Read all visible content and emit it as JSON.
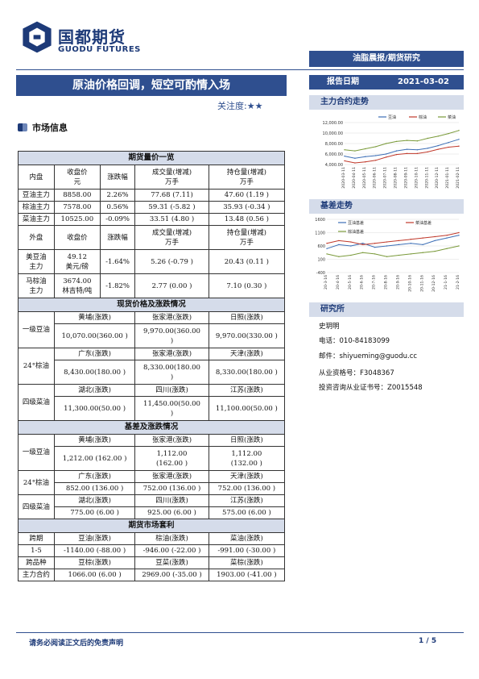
{
  "header": {
    "logo_cn": "国都期货",
    "logo_en": "GUODU FUTURES",
    "banner": "油脂晨报/期货研究"
  },
  "title": "原油价格回调，短空可酌情入场",
  "attention": "关注度:★★",
  "report_date": {
    "label": "报告日期",
    "value": "2021-03-02"
  },
  "section_market": "市场信息",
  "futures_table": {
    "caption": "期货量价一览",
    "head1": [
      "内盘",
      "收盘价\n元",
      "涨跌幅",
      "成交量(增减)\n万手",
      "持仓量(增减)\n万手"
    ],
    "rows1": [
      [
        "豆油主力",
        "8858.00",
        "2.26%",
        "77.68 (7.11)",
        "47.60 (1.19 )"
      ],
      [
        "棕油主力",
        "7578.00",
        "0.56%",
        "59.31 (-5.82 )",
        "35.93 (-0.34 )"
      ],
      [
        "菜油主力",
        "10525.00",
        "-0.09%",
        "33.51 (4.80 )",
        "13.48 (0.56 )"
      ]
    ],
    "head2": [
      "外盘",
      "收盘价",
      "涨跌幅",
      "成交量(增减)\n万手",
      "持仓量(增减)\n万手"
    ],
    "rows2": [
      [
        "美豆油\n主力",
        "49.12\n美元/磅",
        "-1.64%",
        "5.26 (-0.79 )",
        "20.43 (0.11 )"
      ],
      [
        "马棕油\n主力",
        "3674.00\n林吉特/吨",
        "-1.82%",
        "2.77 (0.00 )",
        "7.10 (0.30 )"
      ]
    ]
  },
  "spot_table": {
    "caption": "现货价格及涨跌情况",
    "groups": [
      {
        "label": "一级豆油",
        "regions": [
          "黄埔(涨跌)",
          "张家港(涨跌)",
          "日照(涨跌)"
        ],
        "values": [
          "10,070.00(360.00 )",
          "9,970.00(360.00\n)",
          "9,970.00(330.00 )"
        ]
      },
      {
        "label": "24°棕油",
        "regions": [
          "广东(涨跌)",
          "张家港(涨跌)",
          "天津(涨跌)"
        ],
        "values": [
          "8,430.00(180.00 )",
          "8,330.00(180.00\n)",
          "8,330.00(180.00 )"
        ]
      },
      {
        "label": "四级菜油",
        "regions": [
          "湖北(涨跌)",
          "四川(涨跌)",
          "江苏(涨跌)"
        ],
        "values": [
          "11,300.00(50.00 )",
          "11,450.00(50.00\n)",
          "11,100.00(50.00 )"
        ]
      }
    ]
  },
  "basis_table": {
    "caption": "基差及涨跌情况",
    "groups": [
      {
        "label": "一级豆油",
        "regions": [
          "黄埔(涨跌)",
          "张家港(涨跌)",
          "日照(涨跌)"
        ],
        "values": [
          "1,212.00 (162.00 )",
          "1,112.00\n(162.00 )",
          "1,112.00\n(132.00 )"
        ]
      },
      {
        "label": "24°棕油",
        "regions": [
          "广东(涨跌)",
          "张家港(涨跌)",
          "天津(涨跌)"
        ],
        "values": [
          "852.00 (136.00 )",
          "752.00 (136.00 )",
          "752.00 (136.00 )"
        ]
      },
      {
        "label": "四级菜油",
        "regions": [
          "湖北(涨跌)",
          "四川(涨跌)",
          "江苏(涨跌)"
        ],
        "values": [
          "775.00 (6.00 )",
          "925.00 (6.00 )",
          "575.00 (6.00 )"
        ]
      }
    ]
  },
  "arb_table": {
    "caption": "期货市场套利",
    "rows": [
      [
        "跨期",
        "豆油(涨跌)",
        "棕油(涨跌)",
        "菜油(涨跌)"
      ],
      [
        "1-5",
        "-1140.00 (-88.00 )",
        "-946.00 (-22.00 )",
        "-991.00 (-30.00 )"
      ],
      [
        "跨品种",
        "豆棕(涨跌)",
        "豆菜(涨跌)",
        "菜棕(涨跌)"
      ],
      [
        "主力合约",
        "1066.00 (6.00 )",
        "2969.00 (-35.00 )",
        "1903.00 (-41.00 )"
      ]
    ]
  },
  "right": {
    "chart1_head": "主力合约走势",
    "chart2_head": "基差走势",
    "research_head": "研究所",
    "name": "史玥明",
    "phone": "电话：010-84183099",
    "email": "邮件：shiyueming@guodu.cc",
    "license": "从业资格号：F3048367",
    "advisor": "投资咨询从业证书号：Z0015548"
  },
  "chart_data": [
    {
      "type": "line",
      "title": "主力合约走势",
      "x": [
        "2020-03-11",
        "2020-04-11",
        "2020-05-11",
        "2020-06-11",
        "2020-07-11",
        "2020-08-11",
        "2020-09-11",
        "2020-10-11",
        "2020-11-11",
        "2020-12-11",
        "2021-01-11",
        "2021-02-11"
      ],
      "ylim": [
        4000,
        12000
      ],
      "yticks": [
        "12,000.00",
        "10,000.00",
        "8,000.00",
        "6,000.00",
        "4,000.00"
      ],
      "series": [
        {
          "name": "豆油",
          "color": "#3d6fb6",
          "values": [
            5600,
            5200,
            5500,
            5700,
            6000,
            6600,
            6900,
            6800,
            7100,
            7600,
            8200,
            8800
          ]
        },
        {
          "name": "棕油",
          "color": "#c0392b",
          "values": [
            4700,
            4300,
            4500,
            4800,
            5400,
            5900,
            6100,
            6100,
            6400,
            6900,
            7300,
            7500
          ]
        },
        {
          "name": "菜油",
          "color": "#7a9a3a",
          "values": [
            6800,
            6600,
            7000,
            7400,
            8000,
            8400,
            8600,
            8500,
            9000,
            9400,
            9900,
            10500
          ]
        }
      ]
    },
    {
      "type": "line",
      "title": "基差走势",
      "x": [
        "20-3-16",
        "20-4-16",
        "20-5-16",
        "20-6-16",
        "20-7-16",
        "20-8-16",
        "20-9-16",
        "20-10-16",
        "20-11-16",
        "20-12-16",
        "21-1-16",
        "21-2-16"
      ],
      "ylim": [
        -400,
        1600
      ],
      "yticks": [
        "1600",
        "1100",
        "600",
        "100",
        "-400"
      ],
      "series": [
        {
          "name": "豆油基差",
          "color": "#3d6fb6",
          "values": [
            500,
            650,
            600,
            700,
            550,
            600,
            650,
            700,
            650,
            800,
            900,
            1000
          ]
        },
        {
          "name": "菜油基差",
          "color": "#c0392b",
          "values": [
            700,
            800,
            750,
            650,
            700,
            750,
            800,
            850,
            900,
            950,
            1000,
            1100
          ]
        },
        {
          "name": "棕油基差",
          "color": "#7a9a3a",
          "values": [
            300,
            200,
            250,
            350,
            300,
            200,
            250,
            300,
            350,
            400,
            500,
            600
          ]
        }
      ]
    }
  ],
  "footer": {
    "disclaimer": "请务必阅读正文后的免责声明",
    "page": "1 / 5"
  }
}
